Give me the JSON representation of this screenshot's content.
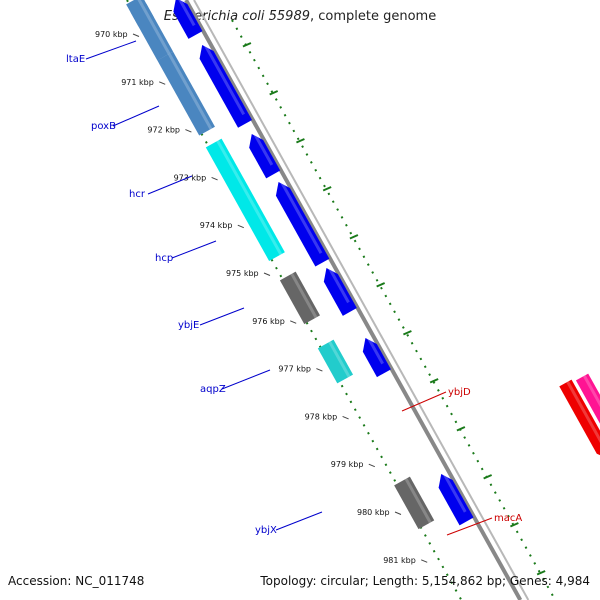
{
  "title": {
    "organism": "Escherichia coli 55989",
    "suffix": ", complete genome"
  },
  "footer": {
    "accession": "Accession: NC_011748",
    "summary": "Topology: circular; Length: 5,154,862 bp; Genes: 4,984"
  },
  "colors": {
    "backbone": "#888888",
    "skew_dots": "#1a7a1a",
    "label_reverse": "#0000cc",
    "label_forward": "#cc0000",
    "blue": "#0000ee",
    "steelblue": "#4a86c0",
    "cyan": "#00e8e8",
    "teal": "#22cccc",
    "gray": "#666666",
    "red": "#ee0000",
    "magenta": "#ff1493",
    "olive": "#6b8e23",
    "spring": "#00e8a0"
  },
  "ticks": [
    {
      "label": "970 kbp"
    },
    {
      "label": "971 kbp"
    },
    {
      "label": "972 kbp"
    },
    {
      "label": "973 kbp"
    },
    {
      "label": "974 kbp"
    },
    {
      "label": "975 kbp"
    },
    {
      "label": "976 kbp"
    },
    {
      "label": "977 kbp"
    },
    {
      "label": "978 kbp"
    },
    {
      "label": "979 kbp"
    },
    {
      "label": "980 kbp"
    },
    {
      "label": "981 kbp"
    }
  ],
  "genes": [
    {
      "name": "ltaE",
      "strand": "reverse"
    },
    {
      "name": "poxB",
      "strand": "reverse"
    },
    {
      "name": "hcr",
      "strand": "reverse"
    },
    {
      "name": "hcp",
      "strand": "reverse"
    },
    {
      "name": "ybjE",
      "strand": "reverse"
    },
    {
      "name": "aqpZ",
      "strand": "reverse"
    },
    {
      "name": "ybjD",
      "strand": "forward"
    },
    {
      "name": "ybjX",
      "strand": "reverse"
    },
    {
      "name": "macA",
      "strand": "forward"
    }
  ]
}
